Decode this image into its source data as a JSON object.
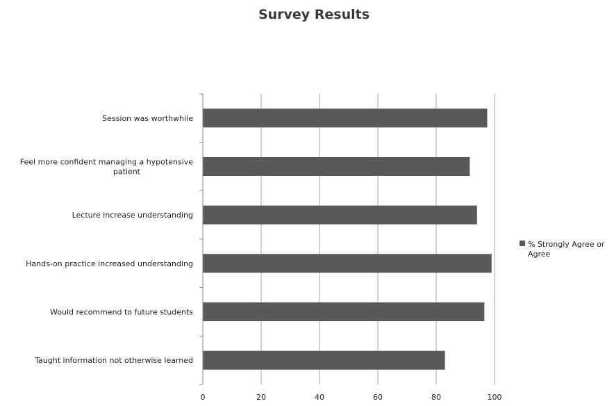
{
  "chart_data": {
    "type": "bar",
    "orientation": "horizontal",
    "title": "Survey Results",
    "xlabel": "",
    "ylabel": "",
    "xlim": [
      0,
      100
    ],
    "x_ticks": [
      0,
      20,
      40,
      60,
      80,
      100
    ],
    "grid": "vertical",
    "legend_position": "right",
    "categories": [
      "Session was worthwhile",
      "Feel more confident managing a hypotensive patient",
      "Lecture increase understanding",
      "Hands-on practice increased understanding",
      "Would recommend to future students",
      "Taught information not otherwise learned"
    ],
    "category_label_lines": [
      [
        "Session was worthwhile"
      ],
      [
        "Feel more confident managing a hypotensive",
        "patient"
      ],
      [
        "Lecture increase understanding"
      ],
      [
        "Hands-on practice increased understanding"
      ],
      [
        "Would recommend to future students"
      ],
      [
        "Taught information not otherwise learned"
      ]
    ],
    "series": [
      {
        "name": "% Strongly Agree or Agree",
        "name_lines": [
          "% Strongly Agree or",
          "Agree"
        ],
        "color": "#595959",
        "values": [
          97.5,
          91.5,
          94,
          99,
          96.5,
          83
        ]
      }
    ]
  }
}
